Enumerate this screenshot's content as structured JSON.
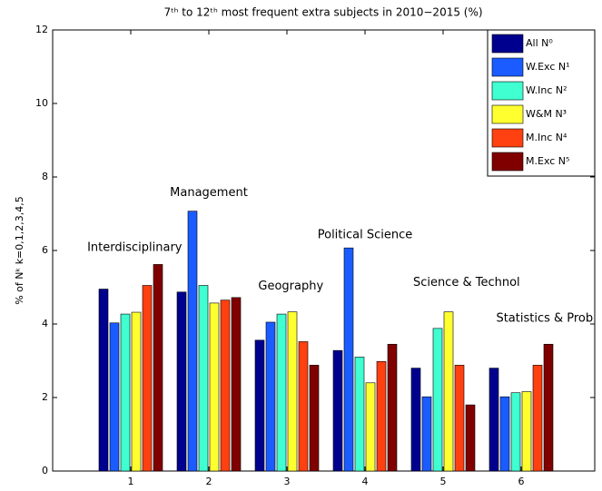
{
  "chart_data": {
    "type": "bar",
    "title": "7ᵗʰ to 12ᵗʰ most frequent extra subjects in 2010−2015 (%)",
    "y_label": "% of Nᵏ  k=0,1,2,3,4,5",
    "categories": [
      "1",
      "2",
      "3",
      "4",
      "5",
      "6"
    ],
    "annotations": [
      "Interdisciplinary",
      "Management",
      "Geography",
      "Political Science",
      "Science & Technol",
      "Statistics & Prob"
    ],
    "series": [
      {
        "name": "All N⁰",
        "color": "#00008f",
        "values": [
          4.95,
          4.87,
          3.56,
          3.28,
          2.8,
          2.8
        ]
      },
      {
        "name": "W.Exc N¹",
        "color": "#1a5cff",
        "values": [
          4.03,
          7.07,
          4.05,
          6.07,
          2.02,
          2.02
        ]
      },
      {
        "name": "W.Inc N²",
        "color": "#40ffd0",
        "values": [
          4.27,
          5.05,
          4.27,
          3.1,
          3.88,
          2.13
        ]
      },
      {
        "name": "W&M N³",
        "color": "#ffff30",
        "values": [
          4.32,
          4.57,
          4.33,
          2.4,
          4.33,
          2.16
        ]
      },
      {
        "name": "M.Inc N⁴",
        "color": "#ff4010",
        "values": [
          5.05,
          4.65,
          3.52,
          2.98,
          2.88,
          2.88
        ]
      },
      {
        "name": "M.Exc N⁵",
        "color": "#800000",
        "values": [
          5.62,
          4.72,
          2.88,
          3.45,
          1.8,
          3.45
        ]
      }
    ],
    "ylim": [
      0,
      12
    ],
    "yticks": [
      0,
      2,
      4,
      6,
      8,
      10,
      12
    ],
    "legend": "upper right"
  }
}
